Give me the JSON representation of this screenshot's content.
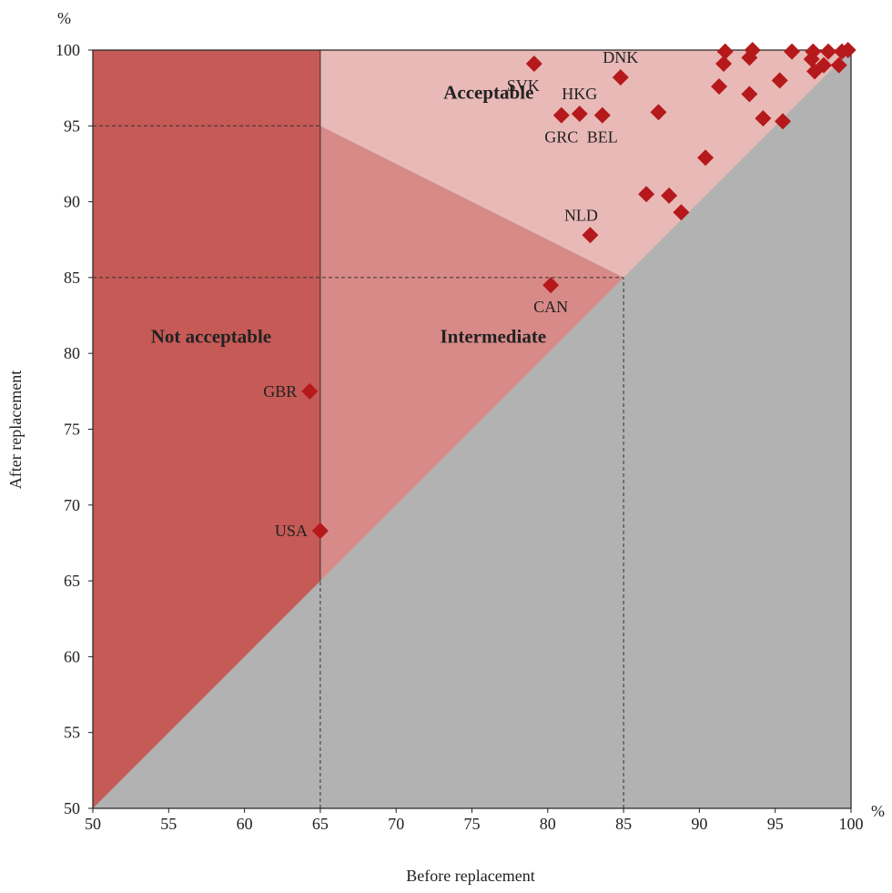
{
  "chart_data": {
    "type": "scatter",
    "xlabel": "Before replacement",
    "ylabel": "After replacement",
    "x_unit": "%",
    "y_unit": "%",
    "xlim": [
      50,
      100
    ],
    "ylim": [
      50,
      100
    ],
    "x_ticks": [
      50,
      55,
      60,
      65,
      70,
      75,
      80,
      85,
      90,
      95,
      100
    ],
    "y_ticks": [
      50,
      55,
      60,
      65,
      70,
      75,
      80,
      85,
      90,
      95,
      100
    ],
    "regions": [
      {
        "name": "Not acceptable",
        "color": "#c55a56"
      },
      {
        "name": "Intermediate",
        "color": "#d88a88"
      },
      {
        "name": "Acceptable",
        "color": "#e8b9b7"
      },
      {
        "name": "",
        "color": "#b2b2b2"
      }
    ],
    "thresholds": {
      "before_min": 65,
      "after_min_low": 85,
      "after_min_high": 95,
      "before_high": 85
    },
    "marker_color": "#b5191b",
    "points": [
      {
        "label": "GBR",
        "x": 64.3,
        "y": 77.5,
        "label_pos": "left"
      },
      {
        "label": "USA",
        "x": 65.0,
        "y": 68.3,
        "label_pos": "left"
      },
      {
        "label": "CAN",
        "x": 80.2,
        "y": 84.5,
        "label_pos": "below"
      },
      {
        "label": "NLD",
        "x": 82.8,
        "y": 87.8,
        "label_pos": "above-left"
      },
      {
        "label": "SVK",
        "x": 79.1,
        "y": 99.1,
        "label_pos": "below-left"
      },
      {
        "label": "HKG",
        "x": 82.1,
        "y": 95.8,
        "label_pos": "above"
      },
      {
        "label": "GRC",
        "x": 80.9,
        "y": 95.7,
        "label_pos": "below"
      },
      {
        "label": "BEL",
        "x": 83.6,
        "y": 95.7,
        "label_pos": "below"
      },
      {
        "label": "DNK",
        "x": 84.8,
        "y": 98.2,
        "label_pos": "above"
      },
      {
        "label": "",
        "x": 87.3,
        "y": 95.9
      },
      {
        "label": "",
        "x": 86.5,
        "y": 90.5
      },
      {
        "label": "",
        "x": 88.0,
        "y": 90.4
      },
      {
        "label": "",
        "x": 88.8,
        "y": 89.3
      },
      {
        "label": "",
        "x": 90.4,
        "y": 92.9
      },
      {
        "label": "",
        "x": 91.3,
        "y": 97.6
      },
      {
        "label": "",
        "x": 91.6,
        "y": 99.1
      },
      {
        "label": "",
        "x": 91.7,
        "y": 99.9
      },
      {
        "label": "",
        "x": 93.3,
        "y": 97.1
      },
      {
        "label": "",
        "x": 93.3,
        "y": 99.5
      },
      {
        "label": "",
        "x": 93.5,
        "y": 100.0
      },
      {
        "label": "",
        "x": 94.2,
        "y": 95.5
      },
      {
        "label": "",
        "x": 95.3,
        "y": 98.0
      },
      {
        "label": "",
        "x": 95.5,
        "y": 95.3
      },
      {
        "label": "",
        "x": 96.1,
        "y": 99.9
      },
      {
        "label": "",
        "x": 97.4,
        "y": 99.4
      },
      {
        "label": "",
        "x": 97.5,
        "y": 99.9
      },
      {
        "label": "",
        "x": 97.6,
        "y": 98.6
      },
      {
        "label": "",
        "x": 98.2,
        "y": 99.0
      },
      {
        "label": "",
        "x": 98.5,
        "y": 99.9
      },
      {
        "label": "",
        "x": 99.2,
        "y": 99.0
      },
      {
        "label": "",
        "x": 99.4,
        "y": 99.9
      },
      {
        "label": "",
        "x": 99.8,
        "y": 100.0
      }
    ]
  }
}
